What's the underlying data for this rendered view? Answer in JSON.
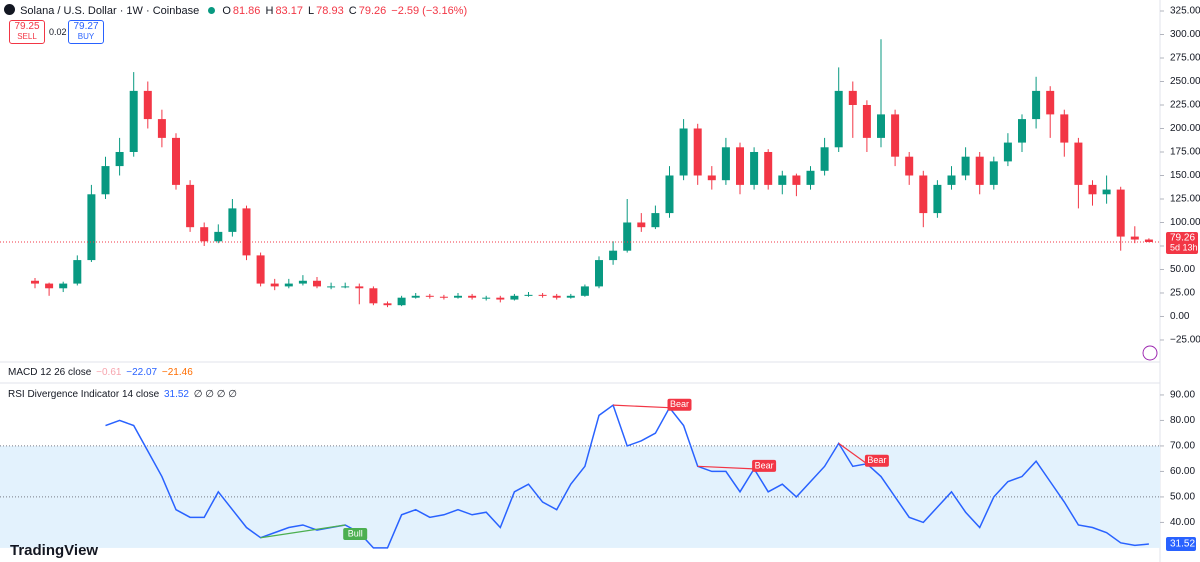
{
  "header": {
    "symbol": "Solana / U.S. Dollar · 1W · Coinbase",
    "open_label": "O",
    "high_label": "H",
    "low_label": "L",
    "close_label": "C",
    "change": "−2.59 (−3.16%)",
    "sell_price": "79.25",
    "sell": "SELL",
    "spread": "0.02",
    "buy_price": "79.27",
    "buy": "BUY",
    "countdown": "5d 13h",
    "macd_title": "MACD 12 26 close",
    "macd_values": [
      "−0.61",
      "−22.07",
      "−21.46"
    ],
    "rsi_title": "RSI Divergence Indicator 14 close",
    "rsi_extra": "∅ ∅ ∅ ∅",
    "brand": "TradingView"
  },
  "chart_data": [
    {
      "type": "candlestick",
      "up_color": "#089981",
      "down_color": "#f23645",
      "open": [
        38,
        35,
        30,
        35,
        60,
        130,
        160,
        175,
        240,
        210,
        190,
        140,
        95,
        80,
        90,
        115,
        65,
        35,
        32,
        35,
        38,
        32,
        32,
        32,
        30,
        14,
        12,
        20,
        22,
        21,
        20,
        22,
        20,
        20,
        18,
        22,
        23,
        22,
        20,
        22,
        32,
        60,
        70,
        100,
        95,
        110,
        150,
        200,
        150,
        145,
        180,
        140,
        175,
        140,
        150,
        140,
        155,
        180,
        240,
        225,
        190,
        215,
        170,
        150,
        110,
        140,
        150,
        170,
        140,
        165,
        185,
        210,
        240,
        215,
        185,
        140,
        130,
        135,
        85,
        81.86
      ],
      "high": [
        41,
        36,
        37,
        65,
        140,
        170,
        190,
        260,
        250,
        220,
        195,
        145,
        100,
        98,
        125,
        118,
        68,
        40,
        40,
        44,
        42,
        36,
        36,
        35,
        32,
        16,
        22,
        25,
        24,
        23,
        25,
        24,
        22,
        22,
        24,
        26,
        25,
        24,
        24,
        34,
        64,
        80,
        125,
        110,
        118,
        160,
        210,
        205,
        160,
        190,
        185,
        180,
        178,
        155,
        152,
        160,
        190,
        265,
        250,
        230,
        295,
        220,
        175,
        155,
        145,
        160,
        180,
        175,
        170,
        195,
        215,
        255,
        245,
        220,
        190,
        145,
        150,
        138,
        96,
        83.17
      ],
      "low": [
        30,
        22,
        26,
        33,
        58,
        125,
        150,
        170,
        200,
        180,
        135,
        90,
        75,
        78,
        85,
        60,
        32,
        28,
        30,
        33,
        30,
        29,
        30,
        13,
        12,
        10,
        11,
        19,
        19,
        18,
        19,
        18,
        17,
        15,
        17,
        21,
        20,
        18,
        19,
        21,
        30,
        55,
        68,
        90,
        93,
        105,
        145,
        140,
        135,
        140,
        130,
        135,
        135,
        130,
        128,
        135,
        150,
        175,
        190,
        175,
        180,
        160,
        140,
        95,
        105,
        135,
        145,
        130,
        135,
        160,
        175,
        200,
        190,
        170,
        115,
        118,
        120,
        70,
        78,
        78.93
      ],
      "close": [
        35,
        30,
        35,
        60,
        130,
        160,
        175,
        240,
        210,
        190,
        140,
        95,
        80,
        90,
        115,
        65,
        35,
        32,
        35,
        38,
        32,
        32,
        32,
        30,
        14,
        12,
        20,
        22,
        21,
        20,
        22,
        20,
        20,
        18,
        22,
        23,
        22,
        20,
        22,
        32,
        60,
        70,
        100,
        95,
        110,
        150,
        200,
        150,
        145,
        180,
        140,
        175,
        140,
        150,
        140,
        155,
        180,
        240,
        225,
        190,
        215,
        170,
        150,
        110,
        140,
        150,
        170,
        140,
        165,
        185,
        210,
        240,
        215,
        185,
        140,
        130,
        135,
        85,
        81.86,
        79.26
      ],
      "ylim": [
        -46.3,
        336.7
      ],
      "yticks": [
        {
          "value": -25,
          "label": "−25.00"
        },
        {
          "value": 0,
          "label": "0.00"
        },
        {
          "value": 25,
          "label": "25.00"
        },
        {
          "value": 50,
          "label": "50.00"
        },
        {
          "value": 75,
          "label": "75.00"
        },
        {
          "value": 100,
          "label": "100.00"
        },
        {
          "value": 125,
          "label": "125.00"
        },
        {
          "value": 150,
          "label": "150.00"
        },
        {
          "value": 175,
          "label": "175.00"
        },
        {
          "value": 200,
          "label": "200.00"
        },
        {
          "value": 225,
          "label": "225.00"
        },
        {
          "value": 250,
          "label": "250.00"
        },
        {
          "value": 275,
          "label": "275.00"
        },
        {
          "value": 300,
          "label": "300.00"
        },
        {
          "value": 325,
          "label": "325.00"
        }
      ]
    },
    {
      "type": "line",
      "color": "#2962ff",
      "values": [
        null,
        null,
        null,
        null,
        null,
        78,
        80,
        78,
        68,
        58,
        45,
        42,
        42,
        52,
        45,
        38,
        34,
        36,
        38,
        39,
        37,
        38,
        39,
        36,
        30,
        30,
        43,
        45,
        42,
        43,
        45,
        43,
        44,
        38,
        52,
        55,
        48,
        45,
        55,
        62,
        82,
        86,
        70,
        72,
        75,
        85,
        78,
        62,
        60,
        60,
        52,
        61,
        52,
        55,
        50,
        56,
        62,
        71,
        62,
        63,
        58,
        50,
        42,
        40,
        46,
        52,
        44,
        38,
        50,
        56,
        58,
        64,
        56,
        48,
        39,
        38,
        36,
        32,
        31,
        31.52
      ],
      "value_label": "31.52",
      "ylim": [
        28.4,
        93.9
      ],
      "yticks": [
        {
          "value": 40,
          "label": "40.00"
        },
        {
          "value": 50,
          "label": "50.00"
        },
        {
          "value": 60,
          "label": "60.00"
        },
        {
          "value": 70,
          "label": "70.00"
        },
        {
          "value": 80,
          "label": "80.00"
        },
        {
          "value": 90,
          "label": "90.00"
        }
      ],
      "band": [
        30,
        70
      ],
      "band_color": "#e3f2fd",
      "midline": 50,
      "divergences": [
        {
          "label": "Bull",
          "color": "#4caf50"
        },
        {
          "label": "Bear",
          "color": "#f23645"
        },
        {
          "label": "Bear",
          "color": "#f23645"
        },
        {
          "label": "Bear",
          "color": "#f23645"
        }
      ]
    }
  ]
}
